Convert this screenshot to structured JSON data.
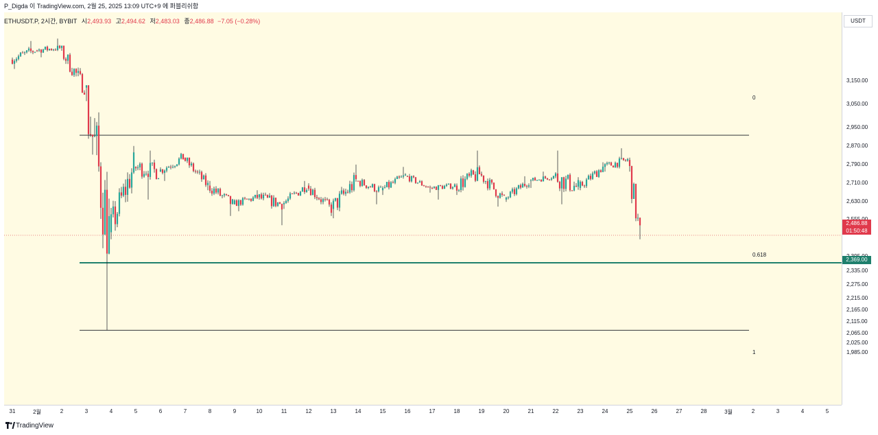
{
  "header": {
    "text": "P_Digda 이 TradingView.com, 2월 25, 2025 13:09 UTC+9 에 퍼블리쉬함"
  },
  "legend": {
    "symbol": "ETHUSDT.P, 2시간, BYBIT",
    "o_label": "시",
    "o_value": "2,493.93",
    "h_label": "고",
    "h_value": "2,494.62",
    "l_label": "저",
    "l_value": "2,483.03",
    "c_label": "종",
    "c_value": "2,486.88",
    "change": "−7.05 (−0.28%)"
  },
  "price_axis": {
    "unit": "USDT",
    "last_price": "2,486.88",
    "countdown": "01:50:48",
    "level_price": "2,369.00"
  },
  "fib_levels": {
    "top": "0",
    "mid": "0.618",
    "bottom": "1"
  },
  "footer": {
    "brand": "TradingView"
  },
  "colors": {
    "up": "#26a69a",
    "down": "#e0394b",
    "background": "#fffbe3",
    "fib_line": "#131722",
    "level_line": "#1e7f6c"
  },
  "chart_data": {
    "type": "candlestick",
    "ylim": [
      1950,
      3300
    ],
    "ticks_y": [
      "3,150.00",
      "3,050.00",
      "2,950.00",
      "2,870.00",
      "2,790.00",
      "2,710.00",
      "2,630.00",
      "2,555.00",
      "2,505.00",
      "2,395.00",
      "2,335.00",
      "2,275.00",
      "2,215.00",
      "2,165.00",
      "2,115.00",
      "2,065.00",
      "2,025.00",
      "1,985.00"
    ],
    "ticks_y_values": [
      3150,
      3050,
      2950,
      2870,
      2790,
      2710,
      2630,
      2555,
      2505,
      2395,
      2335,
      2275,
      2215,
      2165,
      2115,
      2065,
      2025,
      1985
    ],
    "ticks_x": [
      "31",
      "2월",
      "2",
      "3",
      "4",
      "5",
      "6",
      "7",
      "8",
      "9",
      "10",
      "11",
      "12",
      "13",
      "14",
      "15",
      "16",
      "17",
      "18",
      "19",
      "20",
      "21",
      "22",
      "23",
      "24",
      "25",
      "26",
      "27",
      "28",
      "3월",
      "2",
      "3",
      "4",
      "5"
    ],
    "last_price": 2486.88,
    "horizontal_levels": [
      {
        "label": "0",
        "value": 2916
      },
      {
        "label": "0.618",
        "value": 2369
      },
      {
        "label": "1",
        "value": 2080
      }
    ],
    "daily_ohlc": [
      {
        "day": "31",
        "open": 3240,
        "high": 3320,
        "low": 3200,
        "close": 3280
      },
      {
        "day": "2월",
        "open": 3280,
        "high": 3330,
        "low": 3250,
        "close": 3290
      },
      {
        "day": "2",
        "open": 3290,
        "high": 3300,
        "low": 3090,
        "close": 3120
      },
      {
        "day": "3",
        "open": 3120,
        "high": 3130,
        "low": 2080,
        "close": 2500
      },
      {
        "day": "4",
        "open": 2500,
        "high": 2870,
        "low": 2470,
        "close": 2780
      },
      {
        "day": "5",
        "open": 2780,
        "high": 2850,
        "low": 2640,
        "close": 2760
      },
      {
        "day": "6",
        "open": 2760,
        "high": 2840,
        "low": 2720,
        "close": 2820
      },
      {
        "day": "7",
        "open": 2820,
        "high": 2820,
        "low": 2680,
        "close": 2700
      },
      {
        "day": "8",
        "open": 2700,
        "high": 2720,
        "low": 2570,
        "close": 2620
      },
      {
        "day": "9",
        "open": 2620,
        "high": 2680,
        "low": 2590,
        "close": 2650
      },
      {
        "day": "10",
        "open": 2650,
        "high": 2670,
        "low": 2530,
        "close": 2620
      },
      {
        "day": "11",
        "open": 2620,
        "high": 2720,
        "low": 2600,
        "close": 2700
      },
      {
        "day": "12",
        "open": 2700,
        "high": 2710,
        "low": 2570,
        "close": 2600
      },
      {
        "day": "13",
        "open": 2600,
        "high": 2790,
        "low": 2560,
        "close": 2720
      },
      {
        "day": "14",
        "open": 2720,
        "high": 2730,
        "low": 2620,
        "close": 2680
      },
      {
        "day": "15",
        "open": 2680,
        "high": 2780,
        "low": 2660,
        "close": 2740
      },
      {
        "day": "16",
        "open": 2740,
        "high": 2750,
        "low": 2670,
        "close": 2690
      },
      {
        "day": "17",
        "open": 2690,
        "high": 2710,
        "low": 2640,
        "close": 2700
      },
      {
        "day": "18",
        "open": 2700,
        "high": 2850,
        "low": 2660,
        "close": 2750
      },
      {
        "day": "19",
        "open": 2750,
        "high": 2760,
        "low": 2610,
        "close": 2640
      },
      {
        "day": "20",
        "open": 2640,
        "high": 2740,
        "low": 2630,
        "close": 2720
      },
      {
        "day": "21",
        "open": 2720,
        "high": 2760,
        "low": 2690,
        "close": 2740
      },
      {
        "day": "22",
        "open": 2740,
        "high": 2850,
        "low": 2620,
        "close": 2690
      },
      {
        "day": "23",
        "open": 2690,
        "high": 2800,
        "low": 2680,
        "close": 2780
      },
      {
        "day": "24",
        "open": 2780,
        "high": 2860,
        "low": 2760,
        "close": 2810
      },
      {
        "day": "25",
        "open": 2810,
        "high": 2820,
        "low": 2470,
        "close": 2487
      }
    ]
  }
}
